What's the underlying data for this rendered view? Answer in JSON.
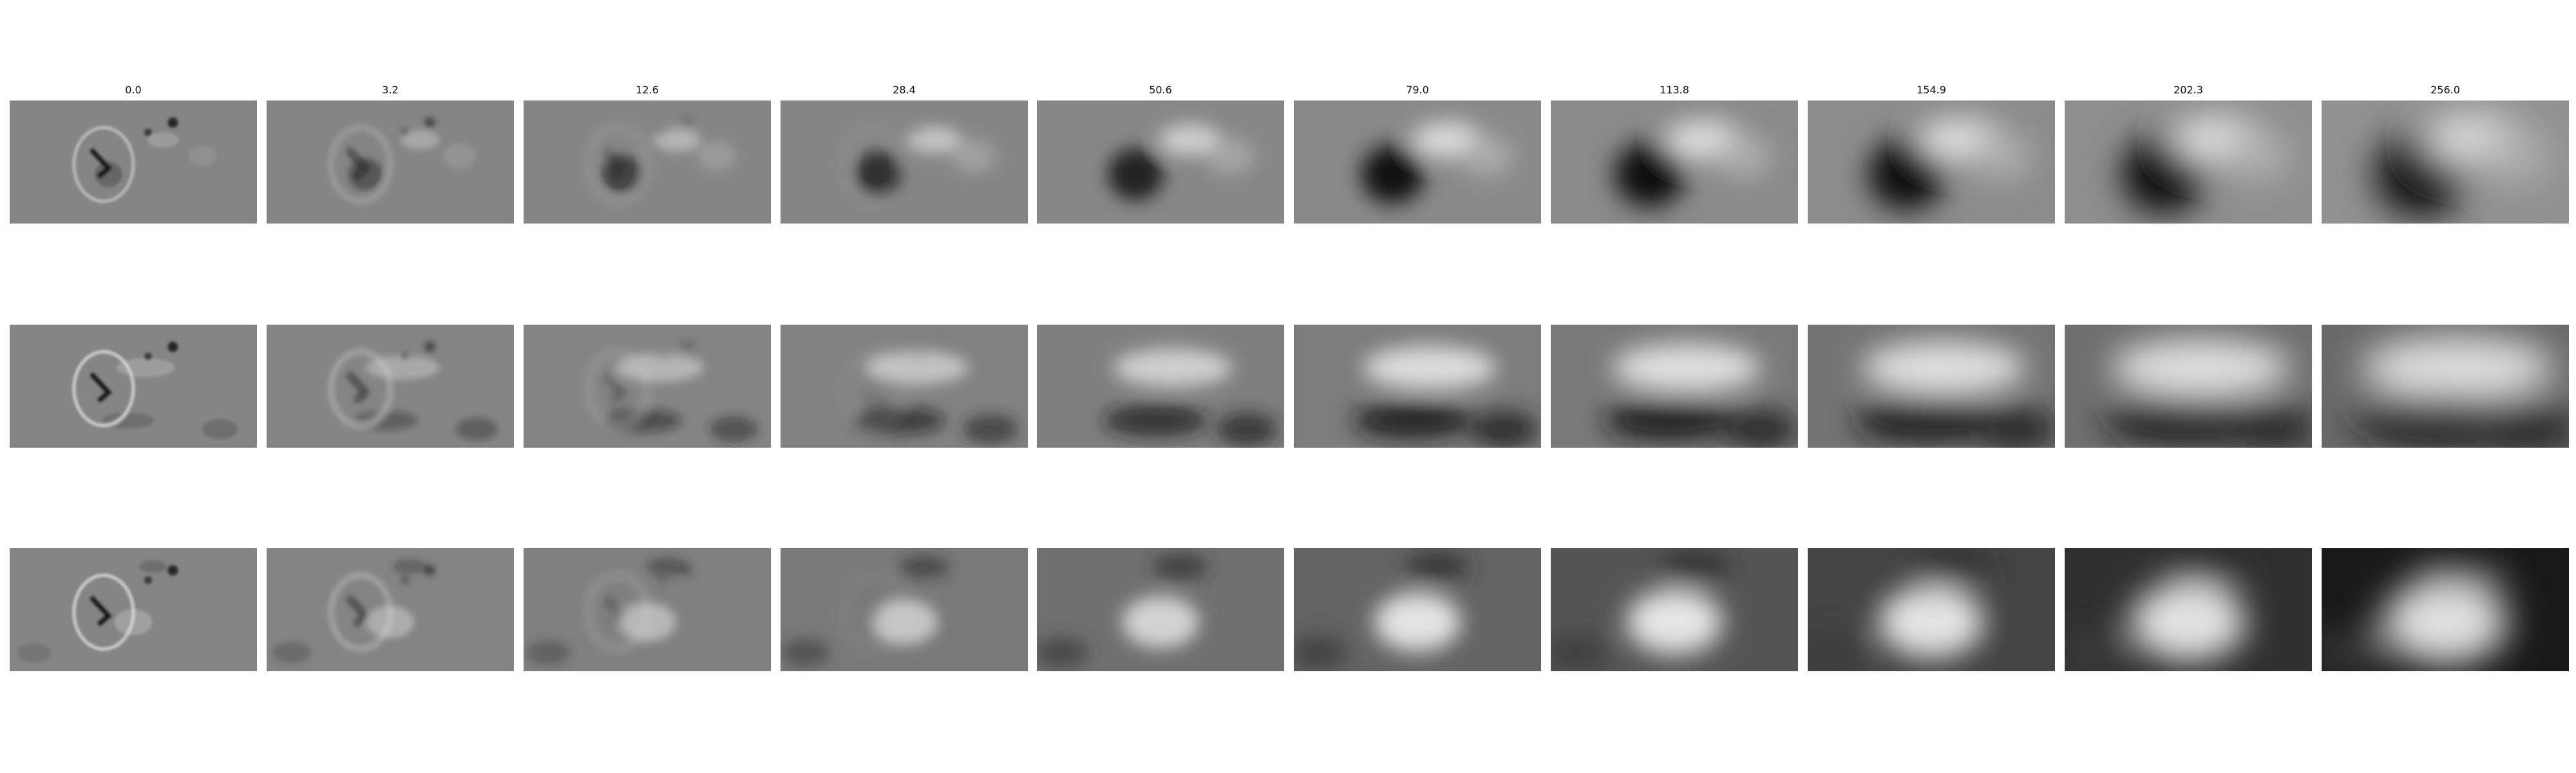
{
  "figure": {
    "column_titles": [
      "0.0",
      "3.2",
      "12.6",
      "28.4",
      "50.6",
      "79.0",
      "113.8",
      "154.9",
      "202.3",
      "256.0"
    ],
    "rows": 3,
    "colormap": "gray",
    "background": "#ffffff"
  }
}
